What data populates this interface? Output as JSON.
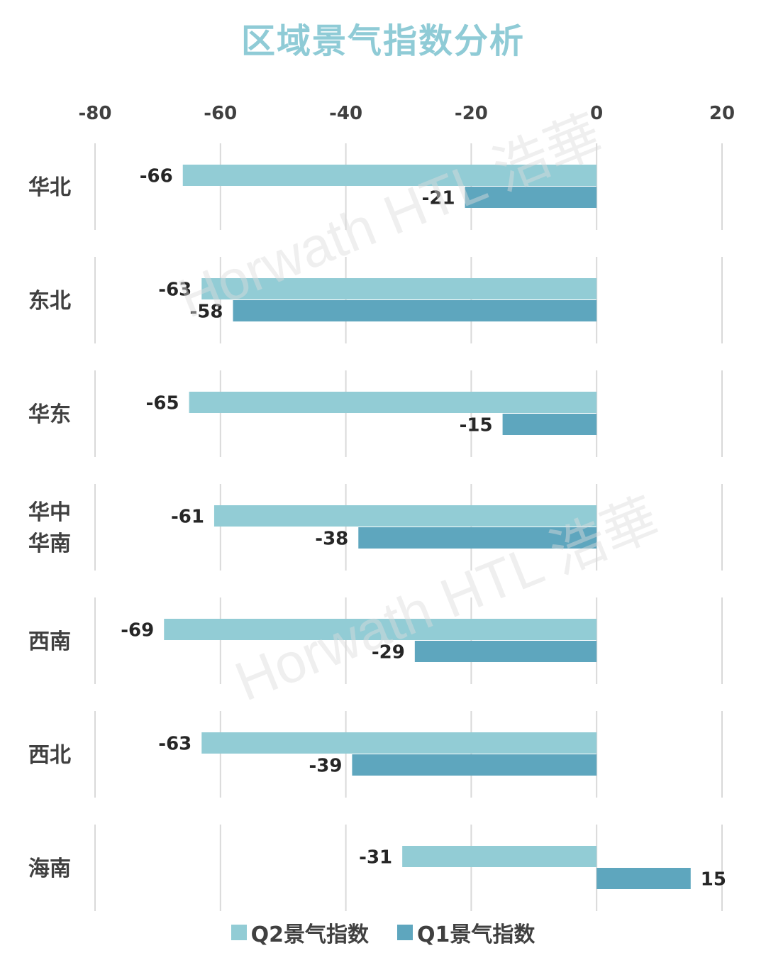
{
  "chart_data": {
    "type": "bar",
    "orientation": "horizontal",
    "title": "区域景气指数分析",
    "categories": [
      "华北",
      "东北",
      "华东",
      "华中\n华南",
      "西南",
      "西北",
      "海南"
    ],
    "series": [
      {
        "name": "Q2景气指数",
        "color": "#92ccd5",
        "values": [
          -66,
          -63,
          -65,
          -61,
          -69,
          -63,
          -31
        ]
      },
      {
        "name": "Q1景气指数",
        "color": "#5ea6be",
        "values": [
          -21,
          -58,
          -15,
          -38,
          -29,
          -39,
          15
        ]
      }
    ],
    "xlim": [
      -80,
      20
    ],
    "xticks": [
      -80,
      -60,
      -40,
      -20,
      0,
      20
    ],
    "xtick_labels": [
      "-80",
      "-60",
      "-40",
      "-20",
      "0",
      "20"
    ],
    "grid": true,
    "legend_position": "bottom",
    "data_labels": true
  },
  "watermark": {
    "text": "Horwath HTL 浩華",
    "color": "#dcdcdc"
  }
}
